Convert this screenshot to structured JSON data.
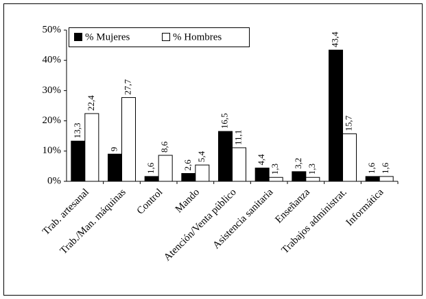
{
  "chart_data": {
    "type": "bar",
    "categories": [
      "Trab. artesanal",
      "Trab./Man. máquinas",
      "Control",
      "Mando",
      "Atención/Venta público",
      "Asistencia sanitaria",
      "Enseñanza",
      "Trabajos administrat.",
      "Informática"
    ],
    "series": [
      {
        "name": "% Mujeres",
        "color": "#000000",
        "values": [
          13.3,
          9,
          1.6,
          2.6,
          16.5,
          4.4,
          3.2,
          43.4,
          1.6
        ],
        "value_labels": [
          "13,3",
          "9",
          "1,6",
          "2,6",
          "16,5",
          "4,4",
          "3,2",
          "43,4",
          "1,6"
        ]
      },
      {
        "name": "% Hombres",
        "color": "#ffffff",
        "values": [
          22.4,
          27.7,
          8.6,
          5.4,
          11.1,
          1.3,
          1.3,
          15.7,
          1.6
        ],
        "value_labels": [
          "22,4",
          "27,7",
          "8,6",
          "5,4",
          "11,1",
          "1,3",
          "1,3",
          "15,7",
          "1,6"
        ]
      }
    ],
    "ylim": [
      0,
      50
    ],
    "yticks": [
      {
        "value": 0,
        "label": "0%"
      },
      {
        "value": 10,
        "label": "10%"
      },
      {
        "value": 20,
        "label": "20%"
      },
      {
        "value": 30,
        "label": "30%"
      },
      {
        "value": 40,
        "label": "40%"
      },
      {
        "value": 50,
        "label": "50%"
      }
    ],
    "grid": false,
    "legend": "top-left"
  }
}
